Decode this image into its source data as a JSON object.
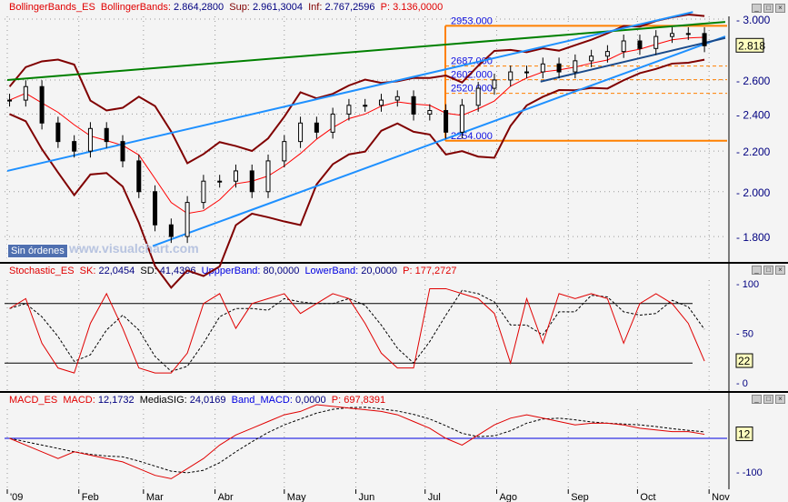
{
  "price_panel": {
    "header": {
      "name": "BollingerBands_ES",
      "indicator": "BollingerBands:",
      "value": "2.864,2800",
      "sup_label": "Sup:",
      "sup": "2.961,3004",
      "inf_label": "Inf:",
      "inf": "2.767,2596",
      "p_label": "P:",
      "p": "3.136,0000"
    },
    "last_price": "2.818",
    "sin_ordenes": "Sin órdenes",
    "watermark": "www.visualchart.com",
    "fib_levels": [
      "2953.000",
      "2687.000",
      "2602.000",
      "2520.000",
      "2254.000"
    ]
  },
  "stoch_panel": {
    "header": {
      "name": "Stochastic_ES",
      "sk_label": "SK:",
      "sk": "22,0454",
      "sd_label": "SD:",
      "sd": "41,4396",
      "up_label": "UppperBand:",
      "up": "80,0000",
      "low_label": "LowerBand:",
      "low": "20,0000",
      "p_label": "P:",
      "p": "177,2727"
    },
    "last": "22"
  },
  "macd_panel": {
    "header": {
      "name": "MACD_ES",
      "macd_label": "MACD:",
      "macd": "12,1732",
      "sig_label": "MediaSIG:",
      "sig": "24,0169",
      "band_label": "Band_MACD:",
      "band": "0,0000",
      "p_label": "P:",
      "p": "697,8391"
    },
    "last": "12"
  },
  "chart_data": [
    {
      "type": "line",
      "title": "BollingerBands_ES",
      "yscale": "log",
      "ylim": [
        1700,
        3050
      ],
      "yticks": [
        "3.000",
        "2.600",
        "2.400",
        "2.200",
        "2.000",
        "1.800"
      ],
      "ytick_values": [
        3000,
        2600,
        2400,
        2200,
        2000,
        1800
      ],
      "xticks": [
        "09",
        "Feb",
        "Mar",
        "Abr",
        "May",
        "Jun",
        "Jul",
        "Ago",
        "Sep",
        "Oct",
        "Nov"
      ],
      "xtick_dates": [
        "2009-01-01",
        "2009-02-01",
        "2009-03-01",
        "2009-04-01",
        "2009-05-01",
        "2009-06-01",
        "2009-07-01",
        "2009-08-01",
        "2009-09-01",
        "2009-10-01",
        "2009-11-01"
      ],
      "start": "2009-01-02",
      "step_days": 7,
      "close": [
        2480,
        2560,
        2350,
        2250,
        2200,
        2320,
        2250,
        2150,
        2000,
        1850,
        1800,
        1950,
        2050,
        2050,
        2100,
        2000,
        2150,
        2250,
        2350,
        2300,
        2400,
        2450,
        2450,
        2480,
        2500,
        2400,
        2420,
        2300,
        2450,
        2550,
        2600,
        2650,
        2650,
        2700,
        2650,
        2720,
        2750,
        2780,
        2850,
        2800,
        2880,
        2900,
        2900,
        2818
      ],
      "fib": [
        2953,
        2687,
        2602,
        2520,
        2254
      ],
      "trendlines": [
        {
          "color": "#008000",
          "from": [
            "2009-01-01",
            2600
          ],
          "to": [
            "2009-11-08",
            2980
          ]
        },
        {
          "color": "#1e90ff",
          "from": [
            "2009-01-01",
            2100
          ],
          "to": [
            "2009-10-25",
            3050
          ]
        },
        {
          "color": "#1e90ff",
          "from": [
            "2009-03-05",
            1760
          ],
          "to": [
            "2009-11-08",
            2880
          ]
        },
        {
          "color": "#1a4a8a",
          "from": [
            "2009-08-20",
            2590
          ],
          "to": [
            "2009-11-08",
            2870
          ]
        }
      ],
      "colors": {
        "bands": "#800000",
        "mid": "#ff0000",
        "fib": "#ff8000"
      }
    },
    {
      "type": "line",
      "title": "Stochastic_ES",
      "ylim": [
        -10,
        110
      ],
      "yticks": [
        "100",
        "50",
        "0"
      ],
      "ytick_values": [
        100,
        50,
        0
      ],
      "bands": [
        80,
        20
      ],
      "sk": [
        75,
        85,
        40,
        15,
        10,
        60,
        90,
        55,
        15,
        10,
        10,
        30,
        80,
        90,
        55,
        80,
        85,
        90,
        70,
        80,
        90,
        85,
        60,
        30,
        15,
        15,
        95,
        95,
        90,
        85,
        70,
        20,
        85,
        40,
        90,
        85,
        90,
        85,
        40,
        80,
        90,
        80,
        60,
        22
      ]
    },
    {
      "type": "line",
      "title": "MACD_ES",
      "ylim": [
        -150,
        110
      ],
      "yticks": [
        "-100"
      ],
      "ytick_values": [
        -100
      ],
      "band": 0,
      "macd": [
        0,
        -20,
        -40,
        -60,
        -40,
        -50,
        -60,
        -70,
        -90,
        -110,
        -120,
        -90,
        -60,
        -20,
        10,
        30,
        50,
        70,
        80,
        100,
        95,
        90,
        85,
        80,
        70,
        50,
        30,
        0,
        -20,
        10,
        40,
        60,
        70,
        60,
        50,
        40,
        45,
        45,
        40,
        30,
        25,
        20,
        20,
        12
      ]
    }
  ]
}
